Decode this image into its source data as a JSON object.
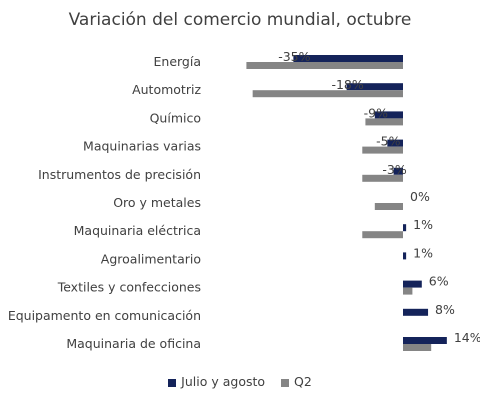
{
  "chart_data": {
    "type": "bar",
    "orientation": "horizontal",
    "title": "Variación del comercio mundial, octubre",
    "categories": [
      "Energía",
      "Automotriz",
      "Químico",
      "Maquinarias varias",
      "Instrumentos de precisión",
      "Oro y metales",
      "Maquinaria eléctrica",
      "Agroalimentario",
      "Textiles y confecciones",
      "Equipamento en comunicación",
      "Maquinaria de oficina"
    ],
    "series": [
      {
        "name": "Julio y agosto",
        "color": "#14235a",
        "values": [
          -35,
          -18,
          -9,
          -5,
          -3,
          0,
          1,
          1,
          6,
          8,
          14
        ],
        "data_labels": [
          "-35%",
          "-18%",
          "-9%",
          "-5%",
          "-3%",
          "0%",
          "1%",
          "1%",
          "6%",
          "8%",
          "14%"
        ]
      },
      {
        "name": "Q2",
        "color": "#858585",
        "values": [
          -50,
          -48,
          -12,
          -13,
          -13,
          -9,
          -13,
          0,
          3,
          0,
          9
        ]
      }
    ],
    "xlim": [
      -53,
      20
    ],
    "grid": false,
    "legend": "bottom"
  }
}
